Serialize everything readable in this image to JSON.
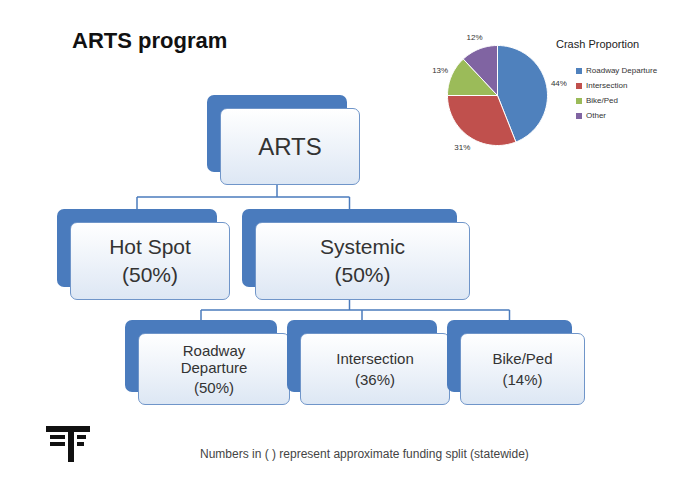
{
  "title": "ARTS program",
  "diagram": {
    "label": "ARTS",
    "children": [
      {
        "label": "Hot Spot",
        "share": "(50%)"
      },
      {
        "label": "Systemic",
        "share": "(50%)",
        "children": [
          {
            "label": "Roadway Departure",
            "share": "(50%)"
          },
          {
            "label": "Intersection",
            "share": "(36%)"
          },
          {
            "label": "Bike/Ped",
            "share": "(14%)"
          }
        ]
      }
    ]
  },
  "footnote": "Numbers in ( ) represent approximate funding split (statewide)",
  "chart_data": {
    "type": "pie",
    "title": "Crash Proportion",
    "categories": [
      "Roadway Departure",
      "Intersection",
      "Bike/Ped",
      "Other"
    ],
    "values": [
      44,
      31,
      13,
      12
    ],
    "value_labels": [
      "44%",
      "31%",
      "13%",
      "12%"
    ],
    "colors": [
      "#4f81bd",
      "#c0504d",
      "#9bbb59",
      "#8064a2"
    ],
    "data_labels": true,
    "legend": "right"
  }
}
